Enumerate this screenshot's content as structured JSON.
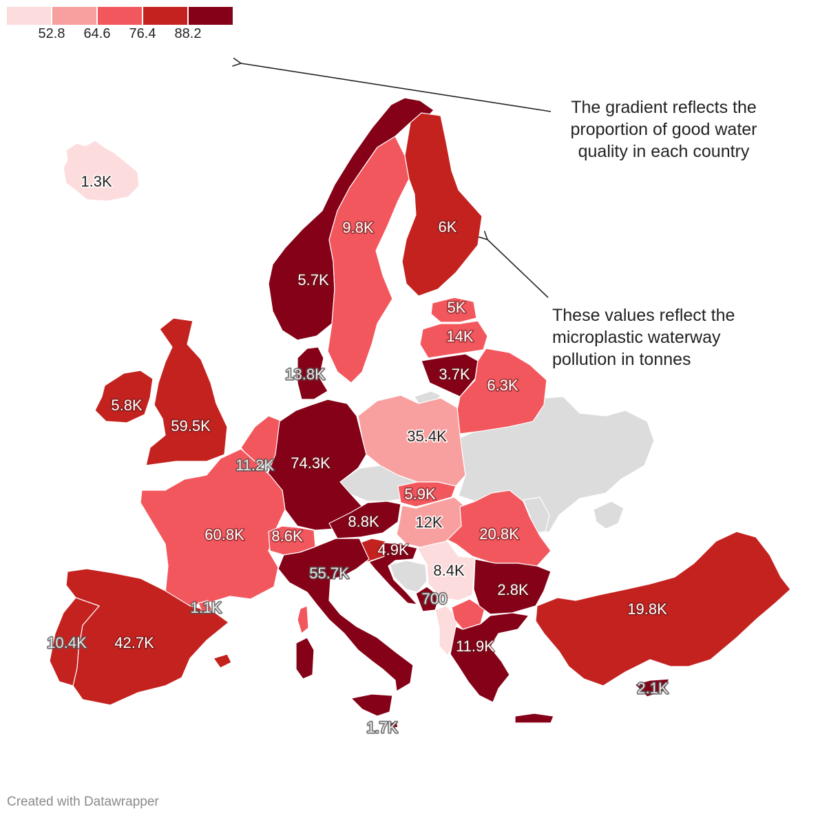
{
  "legend": {
    "colors": [
      "#fcdcdc",
      "#f8a0a0",
      "#f2575d",
      "#c4221f",
      "#850117"
    ],
    "ticks": [
      "52.8",
      "64.6",
      "76.4",
      "88.2"
    ]
  },
  "colors": {
    "nodata": "#dcdcdc",
    "sea": "#ffffff"
  },
  "regions": [
    {
      "id": "iceland",
      "bin": 0,
      "label": "1.3K"
    },
    {
      "id": "norway",
      "bin": 4,
      "label": "5.7K"
    },
    {
      "id": "sweden",
      "bin": 2,
      "label": "9.8K"
    },
    {
      "id": "finland",
      "bin": 3,
      "label": "6K"
    },
    {
      "id": "estonia",
      "bin": 2,
      "label": "5K"
    },
    {
      "id": "latvia",
      "bin": 2,
      "label": "14K"
    },
    {
      "id": "lithuania",
      "bin": 4,
      "label": "3.7K"
    },
    {
      "id": "belarus",
      "bin": 2,
      "label": "6.3K"
    },
    {
      "id": "denmark",
      "bin": 4,
      "label": "13.8K"
    },
    {
      "id": "ireland",
      "bin": 3,
      "label": "5.8K"
    },
    {
      "id": "uk",
      "bin": 3,
      "label": "59.5K"
    },
    {
      "id": "netherlands",
      "bin": 2,
      "label": "11.2K"
    },
    {
      "id": "germany",
      "bin": 4,
      "label": "74.3K"
    },
    {
      "id": "poland",
      "bin": 1,
      "label": "35.4K"
    },
    {
      "id": "slovakia",
      "bin": 2,
      "label": "5.9K"
    },
    {
      "id": "austria",
      "bin": 4,
      "label": "8.8K"
    },
    {
      "id": "hungary",
      "bin": 1,
      "label": "12K"
    },
    {
      "id": "romania",
      "bin": 2,
      "label": "20.8K"
    },
    {
      "id": "france",
      "bin": 2,
      "label": "60.8K"
    },
    {
      "id": "switzerland",
      "bin": 2,
      "label": "8.6K"
    },
    {
      "id": "slovenia",
      "bin": 3,
      "label": "4.9K"
    },
    {
      "id": "croatia",
      "bin": 4,
      "label": ""
    },
    {
      "id": "serbia",
      "bin": 0,
      "label": "8.4K"
    },
    {
      "id": "montenegro",
      "bin": 4,
      "label": "700"
    },
    {
      "id": "bulgaria",
      "bin": 4,
      "label": "2.8K"
    },
    {
      "id": "italy",
      "bin": 4,
      "label": "55.7K"
    },
    {
      "id": "spain",
      "bin": 3,
      "label": "42.7K"
    },
    {
      "id": "portugal",
      "bin": 3,
      "label": "10.4K"
    },
    {
      "id": "andorra",
      "bin": 2,
      "label": "1.1K"
    },
    {
      "id": "albania",
      "bin": 0,
      "label": ""
    },
    {
      "id": "macedonia",
      "bin": 2,
      "label": ""
    },
    {
      "id": "greece",
      "bin": 4,
      "label": "11.9K"
    },
    {
      "id": "turkey",
      "bin": 3,
      "label": "19.8K"
    },
    {
      "id": "cyprus",
      "bin": 4,
      "label": "2.1K"
    },
    {
      "id": "malta",
      "bin": 4,
      "label": "1.7K"
    }
  ],
  "annotations": {
    "gradient": "The gradient reflects the proportion of good water quality in each country",
    "values": "These values reflect the microplastic waterway pollution in tonnes"
  },
  "footer": "Created with Datawrapper"
}
